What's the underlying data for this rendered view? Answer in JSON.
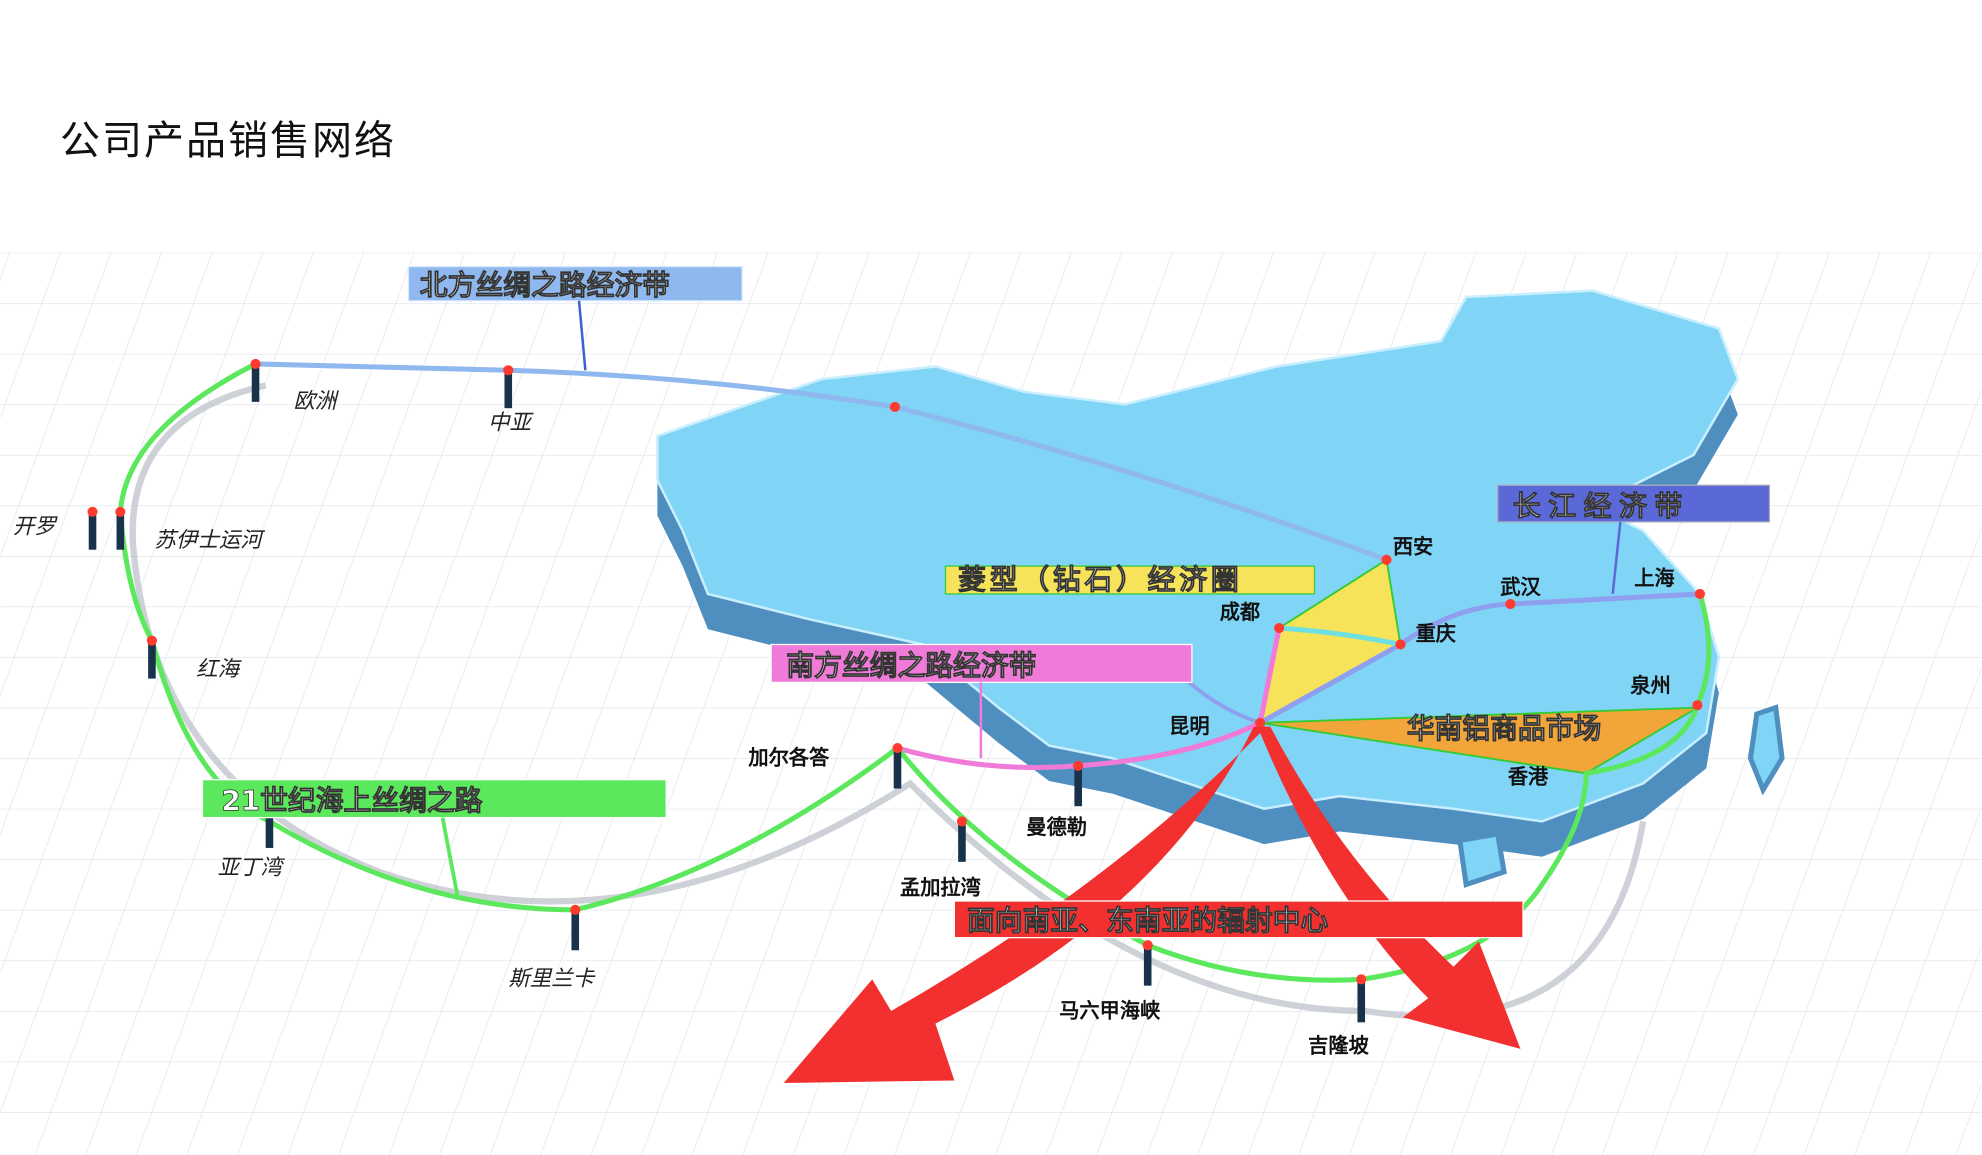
{
  "title": "公司产品销售网络",
  "bands": {
    "north": "北方丝绸之路经济带",
    "yangtze": "长江经济带",
    "diamond": "菱型（钻石）经济圈",
    "south": "南方丝绸之路经济带",
    "maritime": "21世纪海上丝绸之路",
    "aluminum": "华南铝商品市场",
    "hub": "面向南亚、东南亚的辐射中心"
  },
  "colors": {
    "north": "#8fb8ee",
    "yangtze": "#5b68d8",
    "diamond": "#f7e35a",
    "south": "#f07ad8",
    "maritime": "#5ce85c",
    "aluminum": "#f2a63a",
    "hub": "#f23030",
    "china": "#80d4f6"
  },
  "places": {
    "europe": "欧洲",
    "central_asia": "中亚",
    "cairo": "开罗",
    "suez": "苏伊士运河",
    "red_sea": "红海",
    "aden": "亚丁湾",
    "sri_lanka": "斯里兰卡",
    "kolkata": "加尔各答",
    "mandalay": "曼德勒",
    "bengal": "孟加拉湾",
    "malacca": "马六甲海峡",
    "kuala_lumpur": "吉隆坡",
    "xian": "西安",
    "chengdu": "成都",
    "chongqing": "重庆",
    "wuhan": "武汉",
    "shanghai": "上海",
    "quanzhou": "泉州",
    "hong_kong": "香港",
    "kunming": "昆明"
  }
}
